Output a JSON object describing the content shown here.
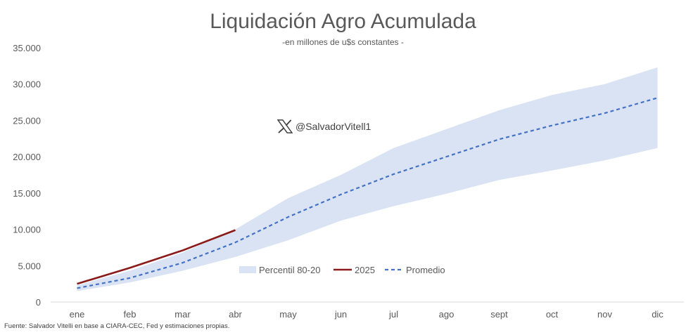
{
  "title": "Liquidación Agro Acumulada",
  "subtitle": "-en millones de u$s constantes -",
  "handle": "@SalvadorVitell1",
  "footer": "Fuente: Salvador Vitelli en base a CIARA-CEC, Fed y estimaciones propias.",
  "chart_data": {
    "type": "line",
    "title": "Liquidación Agro Acumulada",
    "subtitle": "-en millones de u$s constantes -",
    "categories": [
      "ene",
      "feb",
      "mar",
      "abr",
      "may",
      "jun",
      "jul",
      "ago",
      "sept",
      "oct",
      "nov",
      "dic"
    ],
    "ylim": [
      0,
      35000
    ],
    "yticks": [
      0,
      5000,
      10000,
      15000,
      20000,
      25000,
      30000,
      35000
    ],
    "ytick_labels": [
      "0",
      "5.000",
      "10.000",
      "15.000",
      "20.000",
      "25.000",
      "30.000",
      "35.000"
    ],
    "grid": false,
    "legend_position": "bottom-center",
    "band": {
      "name": "Percentil 80-20",
      "color": "#dae3f3",
      "upper": [
        2300,
        4300,
        6800,
        10000,
        14300,
        17500,
        21200,
        23800,
        26400,
        28500,
        30000,
        32300
      ],
      "lower": [
        1500,
        2700,
        4300,
        6200,
        8500,
        11200,
        13200,
        14900,
        16800,
        18100,
        19500,
        21200
      ]
    },
    "series": [
      {
        "name": "2025",
        "color": "#8b1a1a",
        "style": "solid",
        "values": [
          2500,
          4700,
          7100,
          9900,
          null,
          null,
          null,
          null,
          null,
          null,
          null,
          null
        ]
      },
      {
        "name": "Promedio",
        "color": "#4472c4",
        "style": "dashed",
        "values": [
          1900,
          3300,
          5400,
          8200,
          11700,
          14800,
          17600,
          20000,
          22400,
          24300,
          26000,
          28100
        ]
      }
    ]
  }
}
